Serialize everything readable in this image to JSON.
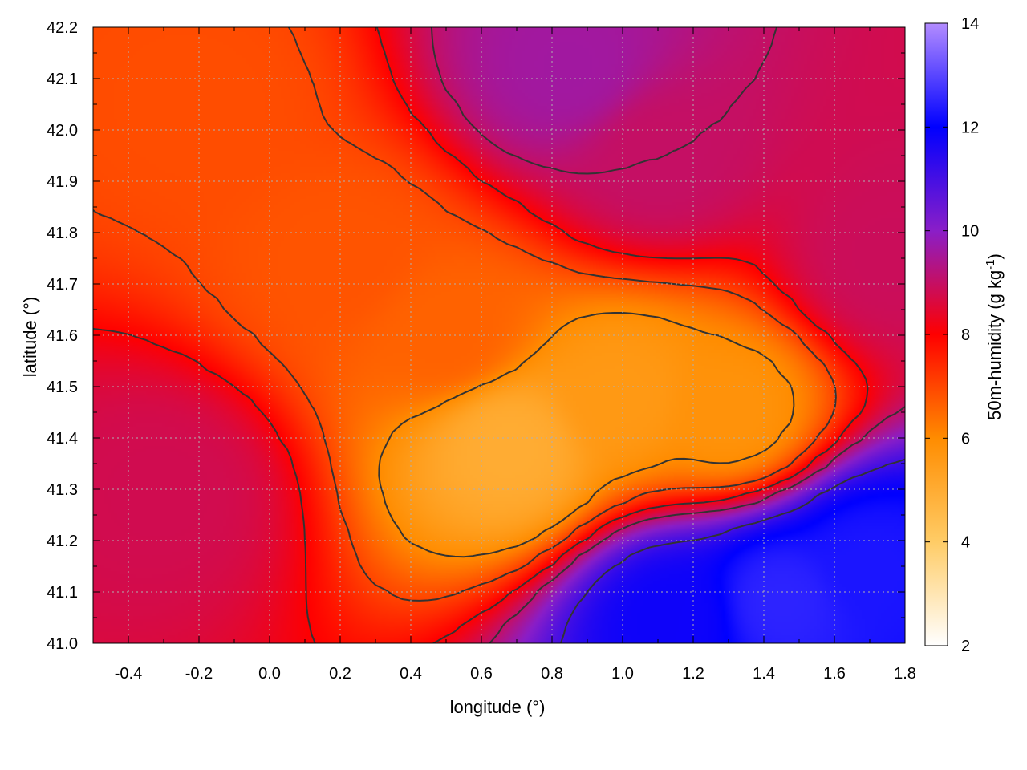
{
  "chart_data": {
    "type": "heatmap",
    "xlabel": "longitude (°)",
    "ylabel": "latitude (°)",
    "colorbar_label": "50m-humidity (g kg",
    "colorbar_label_sup": "-1",
    "colorbar_label_end": ")",
    "xlim": [
      -0.5,
      1.8
    ],
    "ylim": [
      41.0,
      42.2
    ],
    "clim": [
      2,
      14
    ],
    "x_ticks": [
      -0.4,
      -0.2,
      0.0,
      0.2,
      0.4,
      0.6,
      0.8,
      1.0,
      1.2,
      1.4,
      1.6,
      1.8
    ],
    "x_tick_labels": [
      "-0.4",
      "-0.2",
      "0.0",
      "0.2",
      "0.4",
      "0.6",
      "0.8",
      "1.0",
      "1.2",
      "1.4",
      "1.6",
      "1.8"
    ],
    "y_ticks": [
      41.0,
      41.1,
      41.2,
      41.3,
      41.4,
      41.5,
      41.6,
      41.7,
      41.8,
      41.9,
      42.0,
      42.1,
      42.2
    ],
    "y_tick_labels": [
      "41.0",
      "41.1",
      "41.2",
      "41.3",
      "41.4",
      "41.5",
      "41.6",
      "41.7",
      "41.8",
      "41.9",
      "42.0",
      "42.1",
      "42.2"
    ],
    "colorbar_ticks": [
      2,
      4,
      6,
      8,
      10,
      12,
      14
    ],
    "colorbar_tick_labels": [
      "2",
      "4",
      "6",
      "8",
      "10",
      "12",
      "14"
    ],
    "colormap": [
      {
        "value": 2,
        "color": "#ffffff"
      },
      {
        "value": 4,
        "color": "#ffcc66"
      },
      {
        "value": 6,
        "color": "#ff8c00"
      },
      {
        "value": 8,
        "color": "#ff0000"
      },
      {
        "value": 10,
        "color": "#8a1ec8"
      },
      {
        "value": 12,
        "color": "#0000ff"
      },
      {
        "value": 14,
        "color": "#b38cff"
      }
    ],
    "grid": true,
    "contours": true,
    "field_features": [
      {
        "lon": 1.45,
        "lat": 41.08,
        "value": 12.5
      },
      {
        "lon": 1.7,
        "lat": 41.15,
        "value": 12.3
      },
      {
        "lon": 1.15,
        "lat": 41.05,
        "value": 11.8
      },
      {
        "lon": 0.68,
        "lat": 41.38,
        "value": 5.0
      },
      {
        "lon": 1.0,
        "lat": 41.48,
        "value": 5.6
      },
      {
        "lon": 1.3,
        "lat": 41.45,
        "value": 5.8
      },
      {
        "lon": 0.85,
        "lat": 42.12,
        "value": 9.6
      },
      {
        "lon": 1.1,
        "lat": 41.95,
        "value": 9.0
      },
      {
        "lon": -0.3,
        "lat": 41.3,
        "value": 8.8
      },
      {
        "lon": 1.75,
        "lat": 41.75,
        "value": 8.9
      },
      {
        "lon": 0.2,
        "lat": 41.75,
        "value": 6.8
      },
      {
        "lon": -0.2,
        "lat": 42.05,
        "value": 6.9
      },
      {
        "lon": 0.5,
        "lat": 41.6,
        "value": 6.6
      }
    ]
  }
}
